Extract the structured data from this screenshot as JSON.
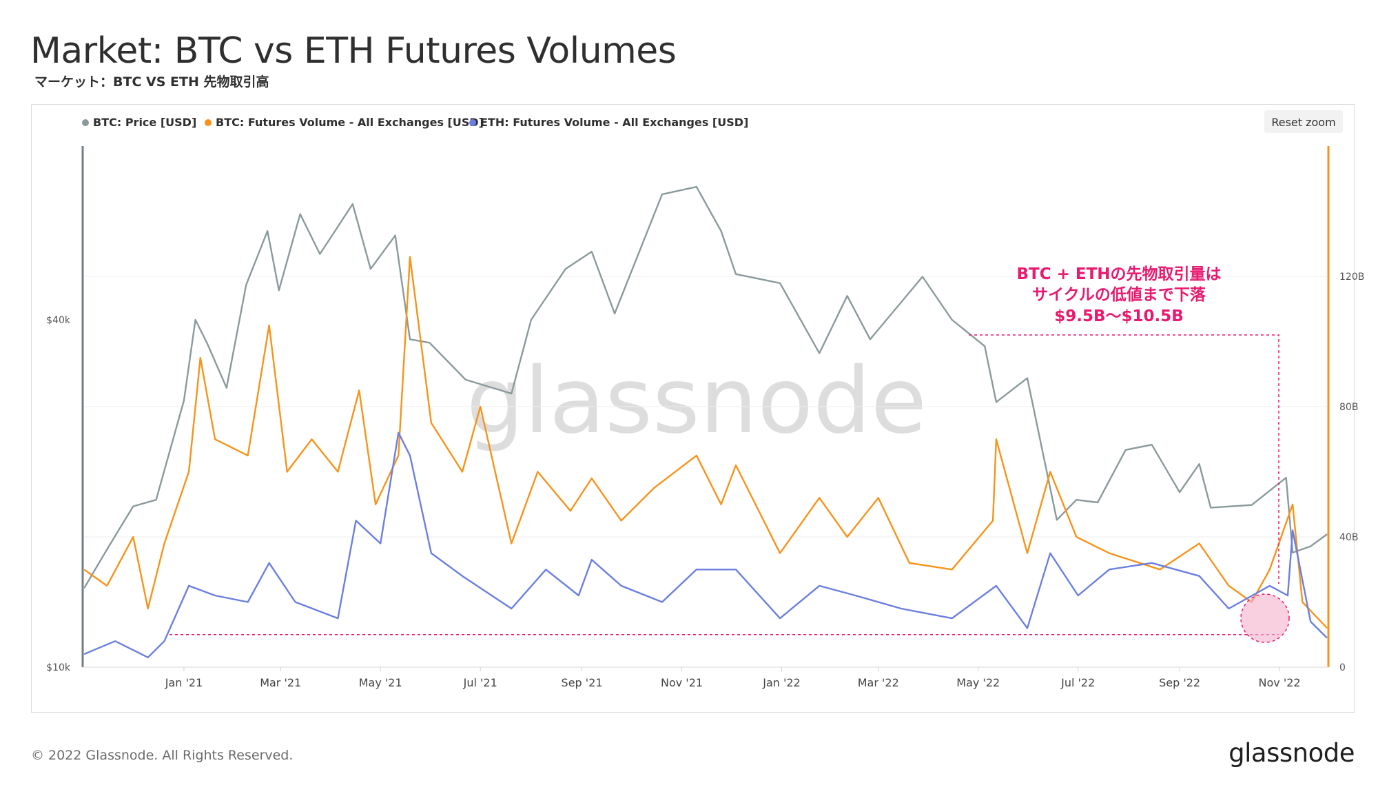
{
  "header": {
    "title": "Market: BTC vs ETH Futures Volumes",
    "subtitle": "マーケット：BTC VS ETH 先物取引高"
  },
  "toolbar": {
    "reset_zoom_label": "Reset zoom"
  },
  "footer": {
    "copyright": "© 2022 Glassnode. All Rights Reserved.",
    "brand": "glassnode"
  },
  "watermark": "glassnode",
  "annotation": {
    "lines": [
      "BTC + ETHの先物取引量は",
      "サイクルの低値まで下落",
      "$9.5B〜$10.5B"
    ],
    "color": "#e8196e",
    "floor_value": 10
  },
  "colors": {
    "btc_price": "#8a9a9c",
    "btc_volume": "#f7931a",
    "eth_volume": "#6b7fe0"
  },
  "chart_data": {
    "type": "line",
    "x_labels": [
      "Jan '21",
      "Mar '21",
      "May '21",
      "Jul '21",
      "Sep '21",
      "Nov '21",
      "Jan '22",
      "Mar '22",
      "May '22",
      "Jul '22",
      "Sep '22",
      "Nov '22"
    ],
    "x_range": [
      "2020-11-01",
      "2022-11-30"
    ],
    "y_left": {
      "scale": "log",
      "ticks": [
        "$10k",
        "$40k"
      ],
      "range": [
        10000,
        80000
      ]
    },
    "y_right": {
      "scale": "linear",
      "ticks": [
        "0",
        "40B",
        "80B",
        "120B"
      ],
      "range": [
        0,
        160
      ]
    },
    "legend_position": "top-left",
    "series": [
      {
        "name": "BTC: Price [USD]",
        "axis": "left",
        "unit": "USD",
        "points": [
          [
            "2020-11-01",
            13700
          ],
          [
            "2020-11-15",
            16000
          ],
          [
            "2020-12-01",
            19000
          ],
          [
            "2020-12-15",
            19500
          ],
          [
            "2021-01-01",
            29000
          ],
          [
            "2021-01-08",
            40000
          ],
          [
            "2021-01-15",
            36500
          ],
          [
            "2021-01-27",
            30500
          ],
          [
            "2021-02-08",
            46000
          ],
          [
            "2021-02-21",
            57000
          ],
          [
            "2021-02-28",
            45000
          ],
          [
            "2021-03-13",
            61000
          ],
          [
            "2021-03-25",
            52000
          ],
          [
            "2021-04-14",
            63500
          ],
          [
            "2021-04-25",
            49000
          ],
          [
            "2021-05-10",
            56000
          ],
          [
            "2021-05-19",
            37000
          ],
          [
            "2021-05-31",
            36500
          ],
          [
            "2021-06-22",
            31500
          ],
          [
            "2021-07-20",
            29800
          ],
          [
            "2021-08-01",
            40000
          ],
          [
            "2021-08-22",
            49000
          ],
          [
            "2021-09-07",
            52500
          ],
          [
            "2021-09-21",
            41000
          ],
          [
            "2021-10-20",
            66000
          ],
          [
            "2021-11-10",
            68000
          ],
          [
            "2021-11-25",
            57000
          ],
          [
            "2021-12-04",
            48000
          ],
          [
            "2021-12-31",
            46300
          ],
          [
            "2022-01-24",
            35000
          ],
          [
            "2022-02-10",
            44000
          ],
          [
            "2022-02-24",
            37000
          ],
          [
            "2022-03-28",
            47500
          ],
          [
            "2022-04-15",
            40000
          ],
          [
            "2022-05-05",
            36000
          ],
          [
            "2022-05-12",
            28800
          ],
          [
            "2022-05-31",
            31700
          ],
          [
            "2022-06-18",
            18000
          ],
          [
            "2022-06-30",
            19500
          ],
          [
            "2022-07-13",
            19300
          ],
          [
            "2022-07-30",
            23800
          ],
          [
            "2022-08-15",
            24300
          ],
          [
            "2022-09-01",
            20100
          ],
          [
            "2022-09-13",
            22500
          ],
          [
            "2022-09-20",
            18900
          ],
          [
            "2022-10-15",
            19100
          ],
          [
            "2022-11-05",
            21300
          ],
          [
            "2022-11-09",
            15800
          ],
          [
            "2022-11-20",
            16200
          ],
          [
            "2022-11-30",
            17000
          ]
        ]
      },
      {
        "name": "BTC: Futures Volume - All Exchanges [USD]",
        "axis": "right",
        "unit": "B",
        "points": [
          [
            "2020-11-01",
            30
          ],
          [
            "2020-11-15",
            25
          ],
          [
            "2020-12-01",
            40
          ],
          [
            "2020-12-10",
            18
          ],
          [
            "2020-12-20",
            38
          ],
          [
            "2021-01-04",
            60
          ],
          [
            "2021-01-11",
            95
          ],
          [
            "2021-01-20",
            70
          ],
          [
            "2021-02-09",
            65
          ],
          [
            "2021-02-22",
            105
          ],
          [
            "2021-03-05",
            60
          ],
          [
            "2021-03-20",
            70
          ],
          [
            "2021-04-05",
            60
          ],
          [
            "2021-04-18",
            85
          ],
          [
            "2021-04-28",
            50
          ],
          [
            "2021-05-12",
            65
          ],
          [
            "2021-05-19",
            126
          ],
          [
            "2021-06-01",
            75
          ],
          [
            "2021-06-20",
            60
          ],
          [
            "2021-07-01",
            80
          ],
          [
            "2021-07-20",
            38
          ],
          [
            "2021-08-05",
            60
          ],
          [
            "2021-08-25",
            48
          ],
          [
            "2021-09-07",
            58
          ],
          [
            "2021-09-25",
            45
          ],
          [
            "2021-10-15",
            55
          ],
          [
            "2021-11-10",
            65
          ],
          [
            "2021-11-25",
            50
          ],
          [
            "2021-12-04",
            62
          ],
          [
            "2021-12-31",
            35
          ],
          [
            "2022-01-24",
            52
          ],
          [
            "2022-02-10",
            40
          ],
          [
            "2022-03-01",
            52
          ],
          [
            "2022-03-20",
            32
          ],
          [
            "2022-04-15",
            30
          ],
          [
            "2022-05-10",
            45
          ],
          [
            "2022-05-12",
            70
          ],
          [
            "2022-05-31",
            35
          ],
          [
            "2022-06-14",
            60
          ],
          [
            "2022-06-30",
            40
          ],
          [
            "2022-07-20",
            35
          ],
          [
            "2022-08-20",
            30
          ],
          [
            "2022-09-13",
            38
          ],
          [
            "2022-10-01",
            25
          ],
          [
            "2022-10-15",
            20
          ],
          [
            "2022-10-26",
            30
          ],
          [
            "2022-11-09",
            50
          ],
          [
            "2022-11-15",
            20
          ],
          [
            "2022-11-30",
            12
          ]
        ]
      },
      {
        "name": "ETH: Futures Volume - All Exchanges [USD]",
        "axis": "right",
        "unit": "B",
        "points": [
          [
            "2020-11-01",
            4
          ],
          [
            "2020-11-20",
            8
          ],
          [
            "2020-12-10",
            3
          ],
          [
            "2020-12-20",
            8
          ],
          [
            "2021-01-04",
            25
          ],
          [
            "2021-01-20",
            22
          ],
          [
            "2021-02-09",
            20
          ],
          [
            "2021-02-22",
            32
          ],
          [
            "2021-03-10",
            20
          ],
          [
            "2021-04-05",
            15
          ],
          [
            "2021-04-16",
            45
          ],
          [
            "2021-05-01",
            38
          ],
          [
            "2021-05-12",
            72
          ],
          [
            "2021-05-19",
            65
          ],
          [
            "2021-06-01",
            35
          ],
          [
            "2021-06-20",
            28
          ],
          [
            "2021-07-20",
            18
          ],
          [
            "2021-08-10",
            30
          ],
          [
            "2021-08-30",
            22
          ],
          [
            "2021-09-07",
            33
          ],
          [
            "2021-09-25",
            25
          ],
          [
            "2021-10-20",
            20
          ],
          [
            "2021-11-10",
            30
          ],
          [
            "2021-12-04",
            30
          ],
          [
            "2021-12-31",
            15
          ],
          [
            "2022-01-24",
            25
          ],
          [
            "2022-02-15",
            22
          ],
          [
            "2022-03-15",
            18
          ],
          [
            "2022-04-15",
            15
          ],
          [
            "2022-05-12",
            25
          ],
          [
            "2022-05-31",
            12
          ],
          [
            "2022-06-14",
            35
          ],
          [
            "2022-07-01",
            22
          ],
          [
            "2022-07-20",
            30
          ],
          [
            "2022-08-15",
            32
          ],
          [
            "2022-09-13",
            28
          ],
          [
            "2022-10-01",
            18
          ],
          [
            "2022-10-26",
            25
          ],
          [
            "2022-11-06",
            22
          ],
          [
            "2022-11-09",
            42
          ],
          [
            "2022-11-20",
            14
          ],
          [
            "2022-11-30",
            9
          ]
        ]
      }
    ]
  }
}
